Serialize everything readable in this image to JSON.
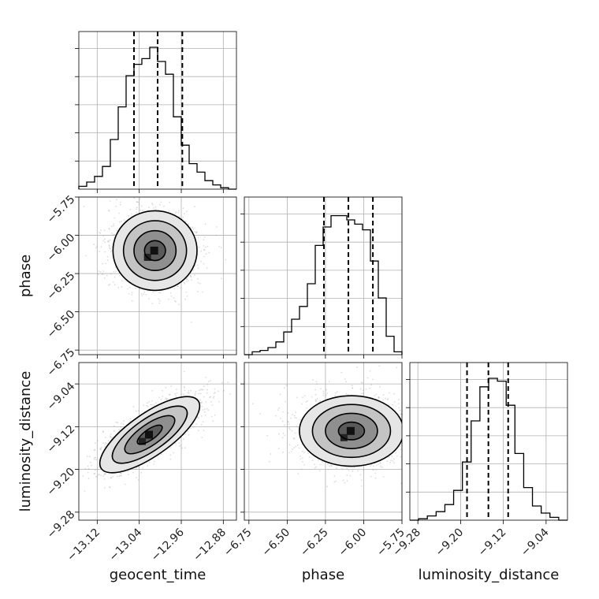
{
  "params": [
    "geocent_time",
    "phase",
    "luminosity_distance"
  ],
  "axis_labels": {
    "x": [
      "geocent_time",
      "phase",
      "luminosity_distance"
    ],
    "y": [
      "",
      "phase",
      "luminosity_distance"
    ]
  },
  "ticks": {
    "geocent_time": [
      "−13.12",
      "−13.04",
      "−12.96",
      "−12.88"
    ],
    "phase": [
      "−6.75",
      "−6.50",
      "−6.25",
      "−6.00",
      "−5.75"
    ],
    "luminosity_distance": [
      "−9.28",
      "−9.20",
      "−9.12",
      "−9.04"
    ]
  },
  "colors": {
    "line": "#000000",
    "grid": "#b0b0b0",
    "scatter": "#9a9a9a"
  },
  "chart_data": {
    "type": "corner",
    "grid": true,
    "parameters": [
      {
        "name": "geocent_time",
        "range": [
          -13.155,
          -12.855
        ],
        "tick_values": [
          -13.12,
          -13.04,
          -12.96,
          -12.88
        ],
        "quantiles": [
          -13.05,
          -13.005,
          -12.958
        ],
        "hist_bins": [
          0.02,
          0.05,
          0.09,
          0.16,
          0.35,
          0.58,
          0.8,
          0.88,
          0.92,
          1.0,
          0.9,
          0.81,
          0.51,
          0.31,
          0.18,
          0.12,
          0.06,
          0.03,
          0.01,
          0.0
        ]
      },
      {
        "name": "phase",
        "range": [
          -6.78,
          -5.75
        ],
        "tick_values": [
          -6.75,
          -6.5,
          -6.25,
          -6.0,
          -5.75
        ],
        "quantiles": [
          -6.26,
          -6.1,
          -5.94
        ],
        "hist_bins": [
          0.0,
          0.02,
          0.03,
          0.05,
          0.09,
          0.16,
          0.25,
          0.34,
          0.5,
          0.77,
          0.9,
          0.98,
          0.98,
          0.95,
          0.92,
          0.88,
          0.66,
          0.4,
          0.13,
          0.02
        ]
      },
      {
        "name": "luminosity_distance",
        "range": [
          -9.295,
          -9.0
        ],
        "tick_values": [
          -9.28,
          -9.2,
          -9.12,
          -9.04
        ],
        "quantiles": [
          -9.188,
          -9.148,
          -9.111
        ],
        "hist_bins": [
          0.0,
          0.01,
          0.03,
          0.06,
          0.11,
          0.21,
          0.41,
          0.7,
          0.94,
          1.0,
          0.98,
          0.81,
          0.47,
          0.23,
          0.1,
          0.05,
          0.02,
          0.0
        ]
      }
    ],
    "pairs": [
      {
        "x": "geocent_time",
        "y": "phase",
        "center": [
          -13.01,
          -6.1
        ],
        "sd": [
          0.04,
          0.13
        ],
        "corr": 0.0
      },
      {
        "x": "geocent_time",
        "y": "luminosity_distance",
        "center": [
          -13.02,
          -9.135
        ],
        "sd": [
          0.045,
          0.036
        ],
        "corr": 0.6
      },
      {
        "x": "phase",
        "y": "luminosity_distance",
        "center": [
          -6.08,
          -9.128
        ],
        "sd": [
          0.17,
          0.033
        ],
        "corr": 0.0
      }
    ],
    "contour_levels_sigma": [
      0.5,
      1.0,
      1.5,
      2.0
    ]
  }
}
